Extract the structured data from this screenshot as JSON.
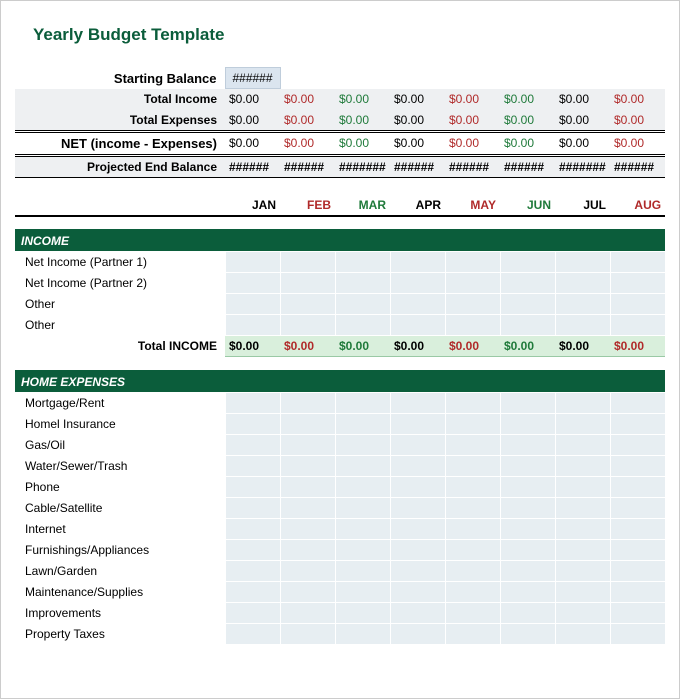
{
  "title": "Yearly Budget Template",
  "months": [
    "JAN",
    "FEB",
    "MAR",
    "APR",
    "MAY",
    "JUN",
    "JUL",
    "AUG"
  ],
  "month_colors": [
    "#000",
    "#b02a2a",
    "#1f7a3a",
    "#000",
    "#b02a2a",
    "#1f7a3a",
    "#000",
    "#b02a2a"
  ],
  "labels": {
    "starting_balance": "Starting Balance",
    "total_income": "Total Income",
    "total_expenses": "Total Expenses",
    "net": "NET (income - Expenses)",
    "projected_end": "Projected End Balance",
    "income_section": "INCOME",
    "total_income_row": "Total INCOME",
    "home_expenses_section": "HOME EXPENSES"
  },
  "starting_balance_value": "######",
  "summary_rows": {
    "total_income": [
      "$0.00",
      "$0.00",
      "$0.00",
      "$0.00",
      "$0.00",
      "$0.00",
      "$0.00",
      "$0.00"
    ],
    "total_expenses": [
      "$0.00",
      "$0.00",
      "$0.00",
      "$0.00",
      "$0.00",
      "$0.00",
      "$0.00",
      "$0.00"
    ],
    "net": [
      "$0.00",
      "$0.00",
      "$0.00",
      "$0.00",
      "$0.00",
      "$0.00",
      "$0.00",
      "$0.00"
    ],
    "projected_end": [
      "######",
      "######",
      "#######",
      "######",
      "######",
      "######",
      "#######",
      "######"
    ]
  },
  "income_lines": [
    "Net Income  (Partner 1)",
    "Net Income (Partner 2)",
    "Other",
    "Other"
  ],
  "total_income_values": [
    "$0.00",
    "$0.00",
    "$0.00",
    "$0.00",
    "$0.00",
    "$0.00",
    "$0.00",
    "$0.00"
  ],
  "home_expense_lines": [
    "Mortgage/Rent",
    "Homel Insurance",
    "Gas/Oil",
    "Water/Sewer/Trash",
    "Phone",
    "Cable/Satellite",
    "Internet",
    "Furnishings/Appliances",
    "Lawn/Garden",
    "Maintenance/Supplies",
    "Improvements",
    "Property Taxes"
  ],
  "colors": {
    "header_dark_green": "#0b5d3b",
    "light_green_row": "#d9efdc",
    "light_blue_cell": "#e7eef2",
    "light_gray_row": "#eef0f2",
    "starting_cell_bg": "#dbe5ef",
    "value_black": "#000000",
    "value_red": "#b02a2a",
    "value_green": "#1f7a3a"
  }
}
